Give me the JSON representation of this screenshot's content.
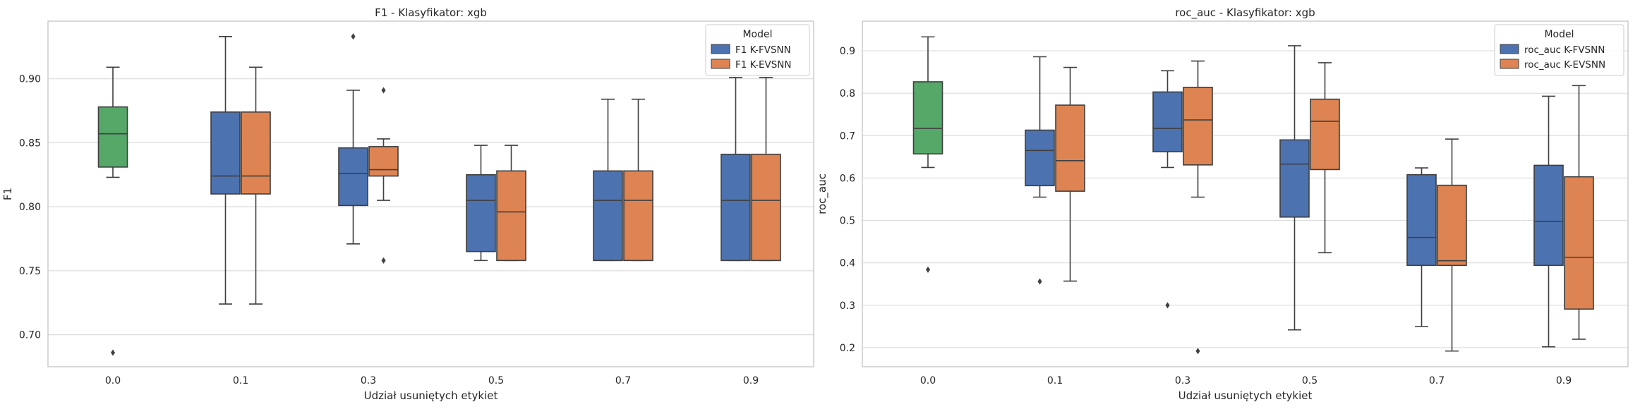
{
  "chart_data": [
    {
      "type": "box",
      "title": "F1 - Klasyfikator: xgb",
      "xlabel": "Udział usuniętych etykiet",
      "ylabel": "F1",
      "categories": [
        "0.0",
        "0.1",
        "0.3",
        "0.5",
        "0.7",
        "0.9"
      ],
      "ylim": [
        0.675,
        0.945
      ],
      "yticks": [
        0.7,
        0.75,
        0.8,
        0.85,
        0.9
      ],
      "ytick_labels": [
        "0.70",
        "0.75",
        "0.80",
        "0.85",
        "0.90"
      ],
      "grid": true,
      "legend": {
        "title": "Model",
        "position": "top-right"
      },
      "baseline": {
        "category": "0.0",
        "color": "#55a868",
        "stats": {
          "whislo": 0.823,
          "q1": 0.831,
          "med": 0.857,
          "q3": 0.878,
          "whishi": 0.909,
          "fliers": [
            0.686
          ]
        }
      },
      "series": [
        {
          "name": "F1 K-FVSNN",
          "color": "#4c72b0",
          "stats": [
            null,
            {
              "whislo": 0.724,
              "q1": 0.81,
              "med": 0.824,
              "q3": 0.874,
              "whishi": 0.933,
              "fliers": []
            },
            {
              "whislo": 0.771,
              "q1": 0.801,
              "med": 0.826,
              "q3": 0.846,
              "whishi": 0.891,
              "fliers": [
                0.933
              ]
            },
            {
              "whislo": 0.758,
              "q1": 0.765,
              "med": 0.805,
              "q3": 0.825,
              "whishi": 0.848,
              "fliers": []
            },
            {
              "whislo": 0.758,
              "q1": 0.758,
              "med": 0.805,
              "q3": 0.828,
              "whishi": 0.884,
              "fliers": []
            },
            {
              "whislo": 0.758,
              "q1": 0.758,
              "med": 0.805,
              "q3": 0.841,
              "whishi": 0.901,
              "fliers": []
            }
          ]
        },
        {
          "name": "F1 K-EVSNN",
          "color": "#dd8452",
          "stats": [
            null,
            {
              "whislo": 0.724,
              "q1": 0.81,
              "med": 0.824,
              "q3": 0.874,
              "whishi": 0.909,
              "fliers": []
            },
            {
              "whislo": 0.805,
              "q1": 0.824,
              "med": 0.829,
              "q3": 0.847,
              "whishi": 0.853,
              "fliers": [
                0.891,
                0.758
              ]
            },
            {
              "whislo": 0.758,
              "q1": 0.758,
              "med": 0.796,
              "q3": 0.828,
              "whishi": 0.848,
              "fliers": []
            },
            {
              "whislo": 0.758,
              "q1": 0.758,
              "med": 0.805,
              "q3": 0.828,
              "whishi": 0.884,
              "fliers": []
            },
            {
              "whislo": 0.758,
              "q1": 0.758,
              "med": 0.805,
              "q3": 0.841,
              "whishi": 0.901,
              "fliers": []
            }
          ]
        }
      ]
    },
    {
      "type": "box",
      "title": "roc_auc - Klasyfikator: xgb",
      "xlabel": "Udział usuniętych etykiet",
      "ylabel": "roc_auc",
      "categories": [
        "0.0",
        "0.1",
        "0.3",
        "0.5",
        "0.7",
        "0.9"
      ],
      "ylim": [
        0.155,
        0.97
      ],
      "yticks": [
        0.2,
        0.3,
        0.4,
        0.5,
        0.6,
        0.7,
        0.8,
        0.9
      ],
      "ytick_labels": [
        "0.2",
        "0.3",
        "0.4",
        "0.5",
        "0.6",
        "0.7",
        "0.8",
        "0.9"
      ],
      "grid": true,
      "legend": {
        "title": "Model",
        "position": "top-right"
      },
      "baseline": {
        "category": "0.0",
        "color": "#55a868",
        "stats": {
          "whislo": 0.625,
          "q1": 0.657,
          "med": 0.717,
          "q3": 0.827,
          "whishi": 0.933,
          "fliers": [
            0.384
          ]
        }
      },
      "series": [
        {
          "name": "roc_auc K-FVSNN",
          "color": "#4c72b0",
          "stats": [
            null,
            {
              "whislo": 0.555,
              "q1": 0.582,
              "med": 0.665,
              "q3": 0.713,
              "whishi": 0.886,
              "fliers": [
                0.356
              ]
            },
            {
              "whislo": 0.625,
              "q1": 0.662,
              "med": 0.717,
              "q3": 0.803,
              "whishi": 0.853,
              "fliers": [
                0.3
              ]
            },
            {
              "whislo": 0.242,
              "q1": 0.508,
              "med": 0.633,
              "q3": 0.69,
              "whishi": 0.912,
              "fliers": []
            },
            {
              "whislo": 0.25,
              "q1": 0.394,
              "med": 0.46,
              "q3": 0.608,
              "whishi": 0.624,
              "fliers": []
            },
            {
              "whislo": 0.202,
              "q1": 0.394,
              "med": 0.498,
              "q3": 0.63,
              "whishi": 0.793,
              "fliers": []
            }
          ]
        },
        {
          "name": "roc_auc K-EVSNN",
          "color": "#dd8452",
          "stats": [
            null,
            {
              "whislo": 0.357,
              "q1": 0.569,
              "med": 0.641,
              "q3": 0.772,
              "whishi": 0.861,
              "fliers": []
            },
            {
              "whislo": 0.555,
              "q1": 0.631,
              "med": 0.737,
              "q3": 0.814,
              "whishi": 0.876,
              "fliers": [
                0.192
              ]
            },
            {
              "whislo": 0.424,
              "q1": 0.62,
              "med": 0.734,
              "q3": 0.786,
              "whishi": 0.872,
              "fliers": []
            },
            {
              "whislo": 0.192,
              "q1": 0.394,
              "med": 0.405,
              "q3": 0.583,
              "whishi": 0.692,
              "fliers": []
            },
            {
              "whislo": 0.22,
              "q1": 0.291,
              "med": 0.413,
              "q3": 0.603,
              "whishi": 0.818,
              "fliers": []
            }
          ]
        }
      ]
    }
  ]
}
